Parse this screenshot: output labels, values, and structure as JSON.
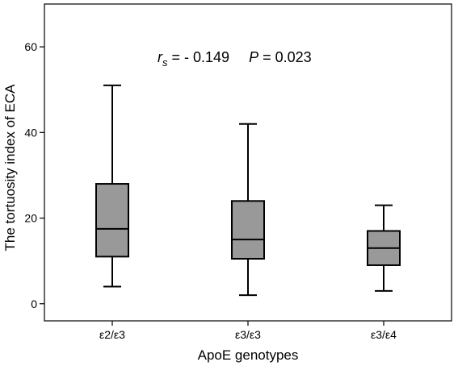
{
  "chart_data": {
    "type": "boxplot",
    "xlabel": "ApoE genotypes",
    "ylabel": "The tortuosity index of ECA",
    "ylim": [
      -4,
      70
    ],
    "yticks": [
      0,
      20,
      40,
      60
    ],
    "categories": [
      "ε2/ε3",
      "ε3/ε3",
      "ε3/ε4"
    ],
    "boxes": [
      {
        "category": "ε2/ε3",
        "whisker_low": 4,
        "q1": 11,
        "median": 17.5,
        "q3": 28,
        "whisker_high": 51
      },
      {
        "category": "ε3/ε3",
        "whisker_low": 2,
        "q1": 10.5,
        "median": 15,
        "q3": 24,
        "whisker_high": 42
      },
      {
        "category": "ε3/ε4",
        "whisker_low": 3,
        "q1": 9,
        "median": 13,
        "q3": 17,
        "whisker_high": 23
      }
    ],
    "annotation": {
      "rs_symbol": "r",
      "rs_subscript": "s",
      "rs_value": " = - 0.149",
      "p_symbol": "P",
      "p_value": " = 0.023"
    },
    "colors": {
      "box_fill": "#999999",
      "line": "#000000"
    },
    "grid": false
  }
}
